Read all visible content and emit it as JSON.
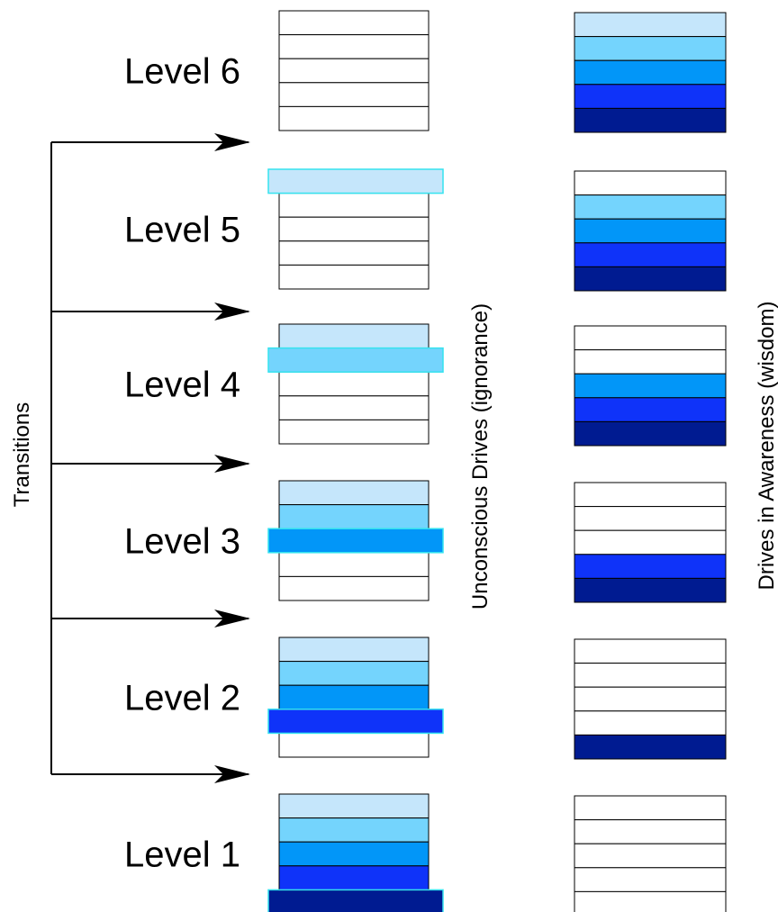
{
  "axis_labels": {
    "transitions": "Transitions",
    "unconscious": "Unconscious Drives (ignorance)",
    "awareness": "Drives in Awareness (wisdom)"
  },
  "drive_colors": [
    "#c5e6fb",
    "#74d4fd",
    "#0296f8",
    "#0f33f9",
    "#001b91"
  ],
  "empty_color": "#ffffff",
  "highlight_stroke": "#35e3ef",
  "levels": [
    {
      "id": 6,
      "label": "Level 6",
      "unconscious_filled": 0,
      "highlight": null,
      "awareness_filled": [
        1,
        1,
        1,
        1,
        1
      ]
    },
    {
      "id": 5,
      "label": "Level 5",
      "unconscious_filled": 0,
      "highlight": 0,
      "awareness_filled": [
        0,
        1,
        1,
        1,
        1
      ]
    },
    {
      "id": 4,
      "label": "Level 4",
      "unconscious_filled": 1,
      "highlight": 1,
      "awareness_filled": [
        0,
        0,
        1,
        1,
        1
      ]
    },
    {
      "id": 3,
      "label": "Level 3",
      "unconscious_filled": 2,
      "highlight": 2,
      "awareness_filled": [
        0,
        0,
        0,
        1,
        1
      ]
    },
    {
      "id": 2,
      "label": "Level 2",
      "unconscious_filled": 3,
      "highlight": 3,
      "awareness_filled": [
        0,
        0,
        0,
        0,
        1
      ]
    },
    {
      "id": 1,
      "label": "Level 1",
      "unconscious_filled": 4,
      "highlight": 4,
      "awareness_filled": [
        0,
        0,
        0,
        0,
        0
      ]
    }
  ],
  "transitions_count": 5
}
